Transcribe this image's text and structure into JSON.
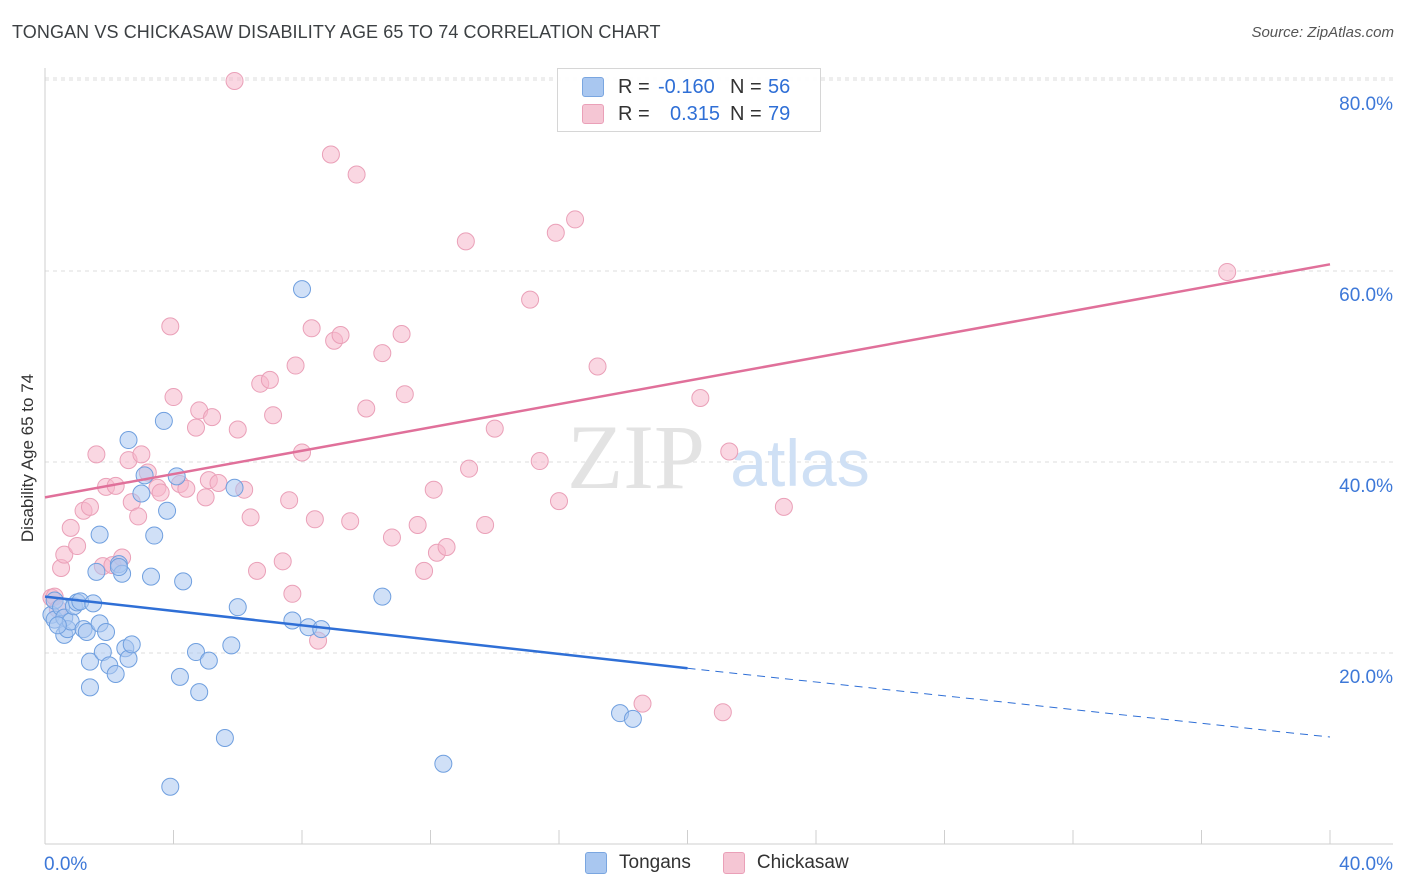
{
  "header": {
    "title": "TONGAN VS CHICKASAW DISABILITY AGE 65 TO 74 CORRELATION CHART",
    "source": "Source: ZipAtlas.com"
  },
  "watermark": {
    "zip": "ZIP",
    "atlas": "atlas"
  },
  "legend": {
    "rows": [
      {
        "r_label": "R =",
        "r_value": "-0.160",
        "n_label": "N =",
        "n_value": "56",
        "color": "#a9c7f0"
      },
      {
        "r_label": "R =",
        "r_value": "0.315",
        "n_label": "N =",
        "n_value": "79",
        "color": "#f5b7ca"
      }
    ]
  },
  "bottom_legend": {
    "tongans": "Tongans",
    "chickasaw": "Chickasaw"
  },
  "chart_data": {
    "type": "scatter",
    "title": "TONGAN VS CHICKASAW DISABILITY AGE 65 TO 74 CORRELATION CHART",
    "xlabel": "",
    "ylabel": "Disability Age 65 to 74",
    "xlim": [
      0,
      40
    ],
    "ylim": [
      0,
      80
    ],
    "x_tick_labels": [
      "0.0%",
      "40.0%"
    ],
    "y_tick_labels": [
      "20.0%",
      "40.0%",
      "60.0%",
      "80.0%"
    ],
    "y_ticks": [
      20,
      40,
      60,
      80
    ],
    "series": [
      {
        "name": "Tongans",
        "color": "#4a86e8",
        "fill": "#a9c7f0",
        "trend": {
          "x0": 0,
          "y0": 25.9,
          "x1": 20,
          "y1": 18.4,
          "dash_to_x": 40,
          "dash_to_y": 11.2
        },
        "points": [
          [
            0.2,
            24.0
          ],
          [
            0.3,
            25.5
          ],
          [
            0.3,
            23.5
          ],
          [
            0.5,
            24.8
          ],
          [
            0.6,
            23.7
          ],
          [
            0.6,
            21.9
          ],
          [
            0.7,
            22.5
          ],
          [
            0.8,
            23.3
          ],
          [
            0.9,
            24.9
          ],
          [
            1.0,
            25.3
          ],
          [
            1.1,
            25.4
          ],
          [
            1.2,
            22.5
          ],
          [
            1.3,
            22.2
          ],
          [
            1.4,
            16.4
          ],
          [
            1.4,
            19.1
          ],
          [
            1.5,
            25.2
          ],
          [
            1.6,
            28.5
          ],
          [
            1.7,
            23.1
          ],
          [
            1.7,
            32.4
          ],
          [
            1.8,
            20.1
          ],
          [
            1.9,
            22.2
          ],
          [
            2.0,
            18.7
          ],
          [
            2.2,
            17.8
          ],
          [
            2.3,
            29.3
          ],
          [
            2.4,
            28.3
          ],
          [
            2.5,
            20.5
          ],
          [
            2.6,
            19.4
          ],
          [
            2.7,
            20.9
          ],
          [
            2.6,
            42.3
          ],
          [
            3.0,
            36.7
          ],
          [
            3.1,
            38.6
          ],
          [
            3.3,
            28.0
          ],
          [
            3.4,
            32.3
          ],
          [
            3.7,
            44.3
          ],
          [
            3.8,
            34.9
          ],
          [
            3.9,
            6.0
          ],
          [
            4.1,
            38.5
          ],
          [
            4.2,
            17.5
          ],
          [
            4.3,
            27.5
          ],
          [
            4.7,
            20.1
          ],
          [
            4.8,
            15.9
          ],
          [
            5.1,
            19.2
          ],
          [
            5.6,
            11.1
          ],
          [
            5.8,
            20.8
          ],
          [
            5.9,
            37.3
          ],
          [
            6.0,
            24.8
          ],
          [
            7.7,
            23.4
          ],
          [
            8.0,
            58.1
          ],
          [
            8.2,
            22.7
          ],
          [
            8.6,
            22.5
          ],
          [
            10.5,
            25.9
          ],
          [
            12.4,
            8.4
          ],
          [
            17.9,
            13.7
          ],
          [
            18.3,
            13.1
          ],
          [
            0.4,
            22.9
          ],
          [
            2.3,
            29.0
          ]
        ]
      },
      {
        "name": "Chickasaw",
        "color": "#e0709a",
        "fill": "#f5b7ca",
        "trend": {
          "x0": 0,
          "y0": 36.3,
          "x1": 40,
          "y1": 60.7
        },
        "points": [
          [
            0.2,
            25.8
          ],
          [
            0.3,
            25.9
          ],
          [
            0.4,
            24.6
          ],
          [
            0.5,
            28.9
          ],
          [
            0.6,
            30.3
          ],
          [
            0.8,
            33.1
          ],
          [
            1.0,
            31.2
          ],
          [
            1.2,
            34.9
          ],
          [
            1.4,
            35.3
          ],
          [
            1.6,
            40.8
          ],
          [
            1.8,
            29.1
          ],
          [
            1.9,
            37.4
          ],
          [
            2.1,
            29.2
          ],
          [
            2.2,
            37.5
          ],
          [
            2.4,
            30.0
          ],
          [
            2.6,
            40.2
          ],
          [
            2.7,
            35.8
          ],
          [
            2.9,
            34.3
          ],
          [
            3.0,
            40.8
          ],
          [
            3.2,
            38.9
          ],
          [
            3.5,
            37.3
          ],
          [
            3.6,
            36.8
          ],
          [
            3.9,
            54.2
          ],
          [
            4.0,
            46.8
          ],
          [
            4.2,
            37.7
          ],
          [
            4.4,
            37.2
          ],
          [
            4.7,
            43.6
          ],
          [
            4.8,
            45.4
          ],
          [
            5.0,
            36.3
          ],
          [
            5.1,
            38.1
          ],
          [
            5.2,
            44.7
          ],
          [
            5.4,
            37.8
          ],
          [
            6.0,
            43.4
          ],
          [
            6.2,
            37.1
          ],
          [
            6.4,
            34.2
          ],
          [
            6.6,
            28.6
          ],
          [
            6.7,
            48.2
          ],
          [
            7.0,
            48.6
          ],
          [
            7.1,
            44.9
          ],
          [
            7.4,
            29.6
          ],
          [
            7.6,
            36.0
          ],
          [
            7.7,
            26.2
          ],
          [
            7.8,
            50.1
          ],
          [
            8.0,
            41.0
          ],
          [
            8.3,
            54.0
          ],
          [
            8.4,
            34.0
          ],
          [
            8.5,
            21.3
          ],
          [
            8.9,
            72.2
          ],
          [
            9.0,
            52.7
          ],
          [
            9.2,
            53.3
          ],
          [
            9.5,
            33.8
          ],
          [
            9.7,
            70.1
          ],
          [
            10.0,
            45.6
          ],
          [
            10.5,
            51.4
          ],
          [
            10.8,
            32.1
          ],
          [
            11.1,
            53.4
          ],
          [
            11.2,
            47.1
          ],
          [
            11.6,
            33.4
          ],
          [
            11.8,
            28.6
          ],
          [
            12.1,
            37.1
          ],
          [
            12.2,
            30.5
          ],
          [
            12.5,
            31.1
          ],
          [
            13.1,
            63.1
          ],
          [
            13.2,
            39.3
          ],
          [
            13.7,
            33.4
          ],
          [
            14.0,
            43.5
          ],
          [
            15.1,
            57.0
          ],
          [
            15.4,
            40.1
          ],
          [
            15.9,
            64.0
          ],
          [
            16.0,
            35.9
          ],
          [
            16.5,
            65.4
          ],
          [
            17.2,
            50.0
          ],
          [
            18.6,
            14.7
          ],
          [
            20.4,
            46.7
          ],
          [
            21.1,
            13.8
          ],
          [
            21.3,
            41.1
          ],
          [
            23.0,
            35.3
          ],
          [
            36.8,
            59.9
          ],
          [
            5.9,
            79.9
          ]
        ]
      }
    ]
  }
}
